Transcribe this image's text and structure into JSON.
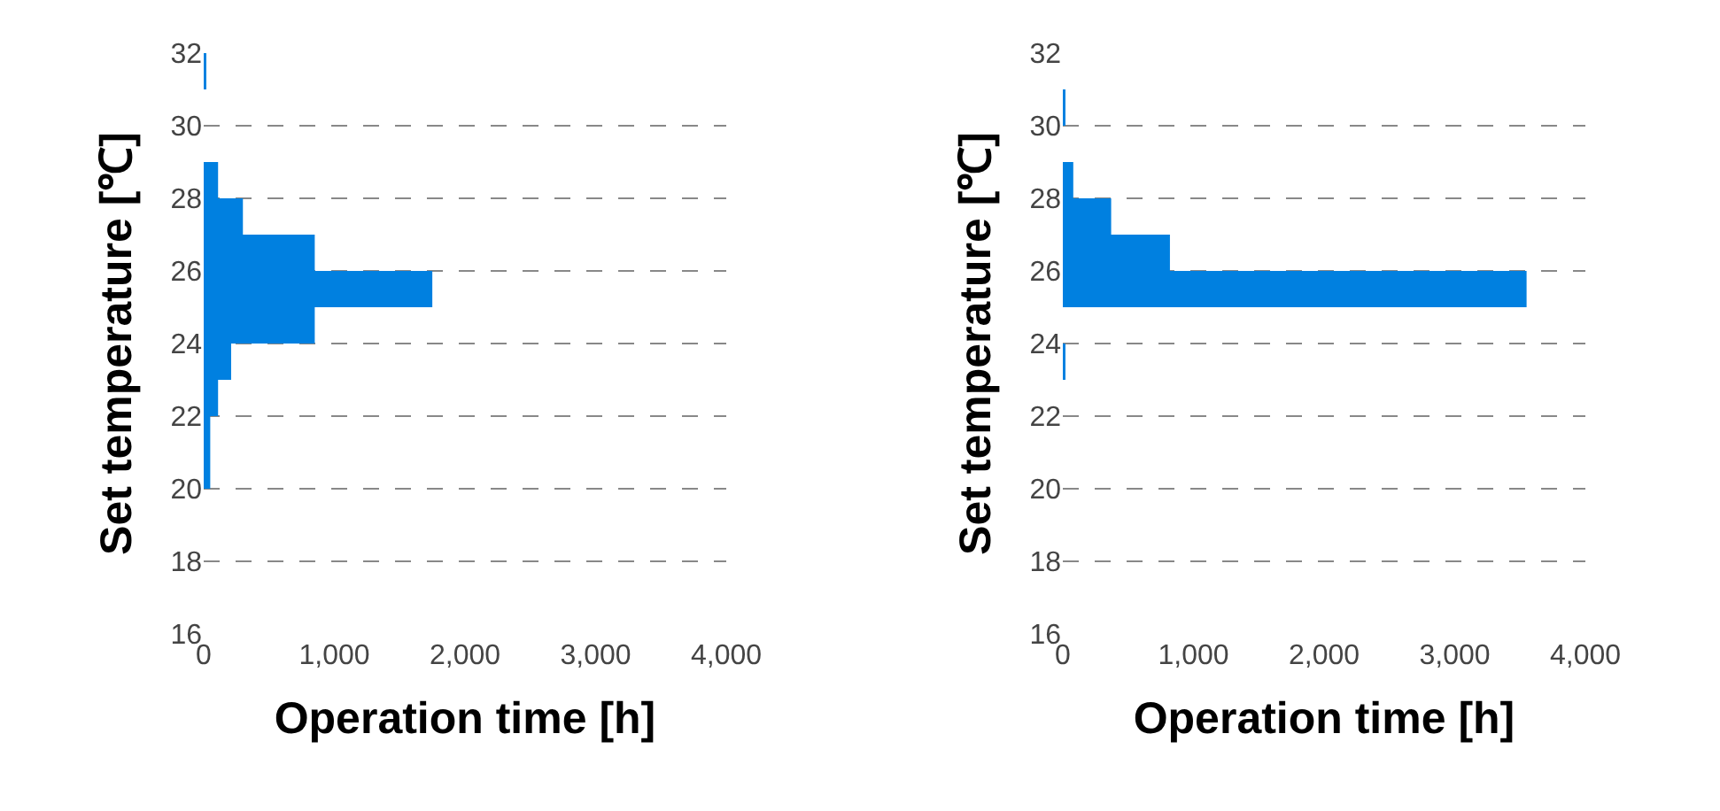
{
  "chart_data": [
    {
      "type": "histogram",
      "orientation": "horizontal",
      "xlabel": "Operation time [h]",
      "ylabel": "Set temperature [℃]",
      "bins": [
        20,
        21,
        22,
        23,
        24,
        25,
        26,
        27,
        28,
        29,
        30,
        31,
        32
      ],
      "values": [
        50,
        50,
        110,
        210,
        850,
        1750,
        850,
        300,
        110,
        0,
        0,
        20
      ],
      "color": "#0080e0",
      "xlim": [
        0,
        4000
      ],
      "xticks": [
        0,
        {
          "value": 1000,
          "label": "1,000"
        },
        {
          "value": 2000,
          "label": "2,000"
        },
        {
          "value": 3000,
          "label": "3,000"
        },
        {
          "value": 4000,
          "label": "4,000"
        }
      ],
      "ylim": [
        16,
        32
      ],
      "yticks": [
        16,
        18,
        20,
        22,
        24,
        26,
        28,
        30,
        32
      ],
      "grid": "y"
    },
    {
      "type": "histogram",
      "orientation": "horizontal",
      "xlabel": "Operation time [h]",
      "ylabel": "Set temperature [℃]",
      "bins": [
        23,
        24,
        25,
        26,
        27,
        28,
        29,
        30,
        31
      ],
      "values": [
        20,
        0,
        3550,
        820,
        370,
        80,
        0,
        20
      ],
      "color": "#0080e0",
      "xlim": [
        0,
        4000
      ],
      "xticks": [
        0,
        {
          "value": 1000,
          "label": "1,000"
        },
        {
          "value": 2000,
          "label": "2,000"
        },
        {
          "value": 3000,
          "label": "3,000"
        },
        {
          "value": 4000,
          "label": "4,000"
        }
      ],
      "ylim": [
        16,
        32
      ],
      "yticks": [
        16,
        18,
        20,
        22,
        24,
        26,
        28,
        30,
        32
      ],
      "grid": "y"
    }
  ]
}
